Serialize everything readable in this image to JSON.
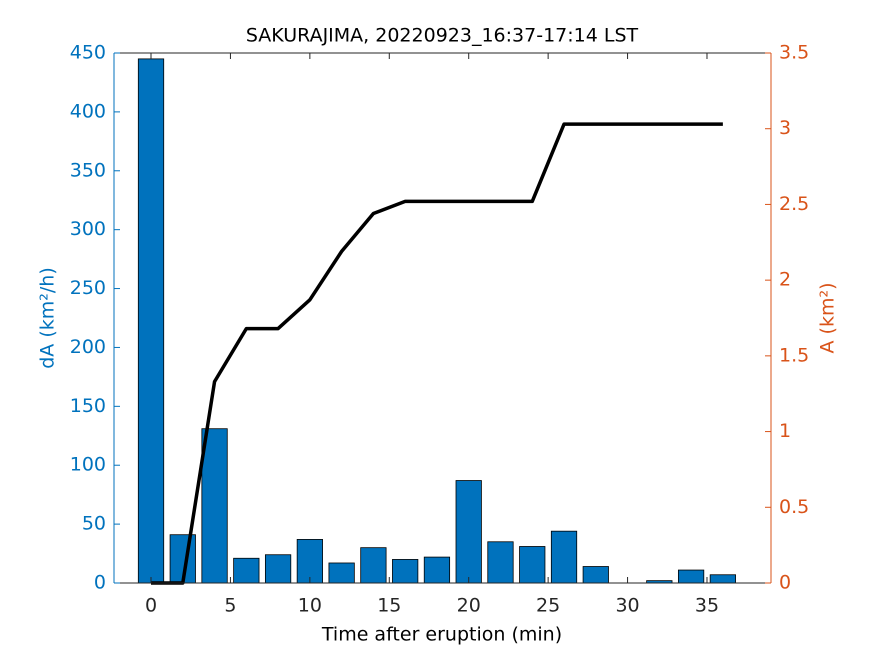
{
  "chart_data": {
    "type": "bar",
    "title": "SAKURAJIMA, 20220923_16:37-17:14 LST",
    "x_label": "Time after eruption (min)",
    "y_label": "dA (km²/h)",
    "y2_label": "A (km²)",
    "x": [
      0,
      2,
      4,
      6,
      8,
      10,
      12,
      14,
      16,
      18,
      20,
      22,
      24,
      26,
      28,
      30,
      32,
      34,
      36
    ],
    "series": [
      {
        "type": "bar",
        "color": "#0072bd",
        "axis": "y",
        "values": [
          445,
          41,
          131,
          21,
          24,
          37,
          17,
          30,
          20,
          22,
          87,
          35,
          31,
          44,
          14,
          0,
          2,
          11,
          7
        ]
      },
      {
        "type": "line",
        "color": "#000000",
        "axis": "y2",
        "values": [
          0,
          0,
          1.33,
          1.68,
          1.68,
          1.87,
          2.19,
          2.44,
          2.52,
          2.52,
          2.52,
          2.52,
          2.52,
          3.03,
          3.03,
          3.03,
          3.03,
          3.03,
          3.03
        ]
      }
    ],
    "xlim": [
      -2.33,
      39.03
    ],
    "xticks": [
      0,
      5,
      10,
      15,
      20,
      25,
      30,
      35
    ],
    "ylim": [
      0,
      450
    ],
    "yticks": [
      0,
      50,
      100,
      150,
      200,
      250,
      300,
      350,
      400,
      450
    ],
    "y2lim": [
      0,
      3.5
    ],
    "y2ticks": [
      0,
      0.5,
      1,
      1.5,
      2,
      2.5,
      3,
      3.5
    ],
    "y_color": "#0072bd",
    "y2_color": "#d95319"
  }
}
